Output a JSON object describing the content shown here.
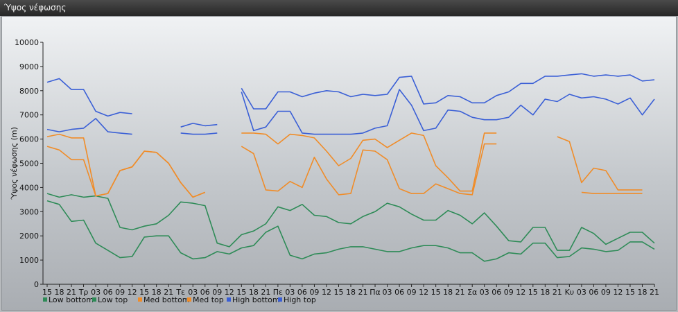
{
  "window": {
    "title": "Ύψος νέφωσης"
  },
  "chart_data": {
    "type": "line",
    "title": "",
    "ylabel": "Ύψος νέφωσης (m)",
    "xlabel": "",
    "ylim": [
      0,
      10000
    ],
    "yticks": [
      0,
      1000,
      2000,
      3000,
      4000,
      5000,
      6000,
      7000,
      8000,
      9000,
      10000
    ],
    "grid": false,
    "legend": "bottom-left",
    "x_labels": [
      "15",
      "18",
      "21",
      "Τρ",
      "03",
      "06",
      "09",
      "12",
      "15",
      "18",
      "21",
      "Τε",
      "03",
      "06",
      "09",
      "12",
      "15",
      "18",
      "21",
      "Πε",
      "03",
      "06",
      "09",
      "12",
      "15",
      "18",
      "21",
      "Πα",
      "03",
      "06",
      "09",
      "12",
      "15",
      "18",
      "21",
      "Σα",
      "03",
      "06",
      "09",
      "12",
      "15",
      "18",
      "21",
      "Κυ",
      "03",
      "06",
      "09",
      "12",
      "15",
      "18",
      "21"
    ],
    "series": [
      {
        "name": "Low bottom",
        "color": "#2e8b57",
        "values": [
          3450,
          3300,
          2600,
          2650,
          1700,
          1400,
          1100,
          1150,
          1950,
          2000,
          2000,
          1300,
          1050,
          1100,
          1350,
          1250,
          1500,
          1600,
          2150,
          2400,
          1200,
          1050,
          1250,
          1300,
          1450,
          1550,
          1550,
          1450,
          1350,
          1350,
          1500,
          1600,
          1600,
          1500,
          1300,
          1300,
          950,
          1050,
          1300,
          1250,
          1700,
          1700,
          1100,
          1150,
          1500,
          1450,
          1350,
          1400,
          1750,
          1750,
          1450
        ]
      },
      {
        "name": "Low top",
        "color": "#2e8b57",
        "values": [
          3750,
          3600,
          3700,
          3600,
          3650,
          3550,
          2350,
          2250,
          2400,
          2500,
          2850,
          3400,
          3350,
          3250,
          1700,
          1550,
          2050,
          2200,
          2500,
          3200,
          3050,
          3300,
          2850,
          2800,
          2550,
          2500,
          2800,
          3000,
          3350,
          3200,
          2900,
          2650,
          2650,
          3050,
          2850,
          2500,
          2950,
          2400,
          1800,
          1750,
          2350,
          2350,
          1400,
          1400,
          2350,
          2100,
          1650,
          1900,
          2150,
          2150,
          1700
        ]
      },
      {
        "name": "Med bottom",
        "color": "#f08c28",
        "values": [
          5700,
          5550,
          5150,
          5150,
          3650,
          3750,
          4700,
          4850,
          5500,
          5450,
          5000,
          4200,
          3600,
          3800,
          null,
          null,
          5700,
          5400,
          3900,
          3850,
          4250,
          4000,
          5250,
          4350,
          3700,
          3750,
          5550,
          5500,
          5150,
          3950,
          3750,
          3750,
          4150,
          3950,
          3750,
          3700,
          5800,
          5800,
          null,
          null,
          null,
          null,
          null,
          null,
          3800,
          3750,
          3750,
          3750,
          3750,
          3750,
          null
        ]
      },
      {
        "name": "Med top",
        "color": "#f08c28",
        "values": [
          6100,
          6200,
          6050,
          6050,
          3650,
          3750,
          4700,
          4850,
          5500,
          5450,
          5000,
          4200,
          3600,
          3800,
          null,
          null,
          6250,
          6250,
          6200,
          5800,
          6200,
          6150,
          6050,
          5500,
          4900,
          5200,
          5950,
          6000,
          5650,
          5950,
          6250,
          6150,
          4900,
          4400,
          3850,
          3850,
          6250,
          6250,
          null,
          null,
          null,
          null,
          6100,
          5900,
          4200,
          4800,
          4700,
          3900,
          3900,
          3900,
          null
        ]
      },
      {
        "name": "High bottom",
        "color": "#3a5fd6",
        "values": [
          6400,
          6300,
          6400,
          6450,
          6850,
          6300,
          6250,
          6200,
          null,
          null,
          null,
          6250,
          6200,
          6200,
          6250,
          null,
          7950,
          6350,
          6500,
          7150,
          7150,
          6250,
          6200,
          6200,
          6200,
          6200,
          6250,
          6450,
          6550,
          8050,
          7400,
          6350,
          6450,
          7200,
          7150,
          6900,
          6800,
          6800,
          6900,
          7400,
          7000,
          7650,
          7550,
          7850,
          7700,
          7750,
          7650,
          7450,
          7700,
          7000,
          7650
        ]
      },
      {
        "name": "High top",
        "color": "#3a5fd6",
        "values": [
          8350,
          8500,
          8050,
          8050,
          7150,
          6950,
          7100,
          7050,
          null,
          null,
          null,
          6500,
          6650,
          6550,
          6600,
          null,
          8100,
          7250,
          7250,
          7950,
          7950,
          7750,
          7900,
          8000,
          7950,
          7750,
          7850,
          7800,
          7850,
          8550,
          8600,
          7450,
          7500,
          7800,
          7750,
          7500,
          7500,
          7800,
          7950,
          8300,
          8300,
          8600,
          8600,
          8650,
          8700,
          8600,
          8650,
          8600,
          8650,
          8400,
          8450
        ]
      }
    ]
  }
}
